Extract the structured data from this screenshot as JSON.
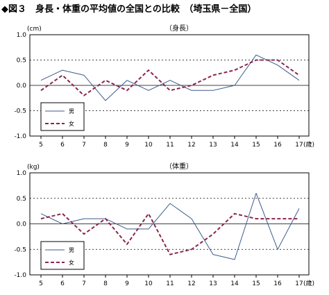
{
  "figure_title": "◆図３　身長・体重の平均値の全国との比較　（埼玉県－全国）",
  "colors": {
    "male": "#3b5a8a",
    "female": "#8a2550"
  },
  "chart_data": [
    {
      "type": "line",
      "title": "（身長）",
      "unit": "(cm)",
      "x_unit": "(歳)",
      "x": [
        5,
        6,
        7,
        8,
        9,
        10,
        11,
        12,
        13,
        14,
        15,
        16,
        17
      ],
      "ylim": [
        -1.0,
        1.0
      ],
      "yticks": [
        "1.0",
        "0.5",
        "0.0",
        "-0.5",
        "-1.0"
      ],
      "ytick_values": [
        1.0,
        0.5,
        0.0,
        -0.5,
        -1.0
      ],
      "legend": "bottom-left",
      "series": [
        {
          "name": "男",
          "values": [
            0.1,
            0.3,
            0.2,
            -0.3,
            0.1,
            -0.1,
            0.1,
            -0.1,
            -0.1,
            0.0,
            0.6,
            0.4,
            0.1
          ]
        },
        {
          "name": "女",
          "values": [
            -0.1,
            0.2,
            -0.2,
            0.1,
            -0.1,
            0.3,
            -0.1,
            0.0,
            0.2,
            0.3,
            0.5,
            0.5,
            0.2
          ]
        }
      ]
    },
    {
      "type": "line",
      "title": "（体重）",
      "unit": "(kg)",
      "x_unit": "(歳)",
      "x": [
        5,
        6,
        7,
        8,
        9,
        10,
        11,
        12,
        13,
        14,
        15,
        16,
        17
      ],
      "ylim": [
        -1.0,
        1.0
      ],
      "yticks": [
        "1.0",
        "0.5",
        "0.0",
        "-0.5",
        "-1.0"
      ],
      "ytick_values": [
        1.0,
        0.5,
        0.0,
        -0.5,
        -1.0
      ],
      "legend": "bottom-left",
      "series": [
        {
          "name": "男",
          "values": [
            0.2,
            0.0,
            0.1,
            0.1,
            -0.1,
            -0.1,
            0.4,
            0.1,
            -0.6,
            -0.7,
            0.6,
            -0.5,
            0.3
          ]
        },
        {
          "name": "女",
          "values": [
            0.1,
            0.2,
            -0.2,
            0.1,
            -0.4,
            0.2,
            -0.6,
            -0.5,
            -0.2,
            0.2,
            0.1,
            0.1,
            0.1
          ]
        }
      ]
    }
  ]
}
